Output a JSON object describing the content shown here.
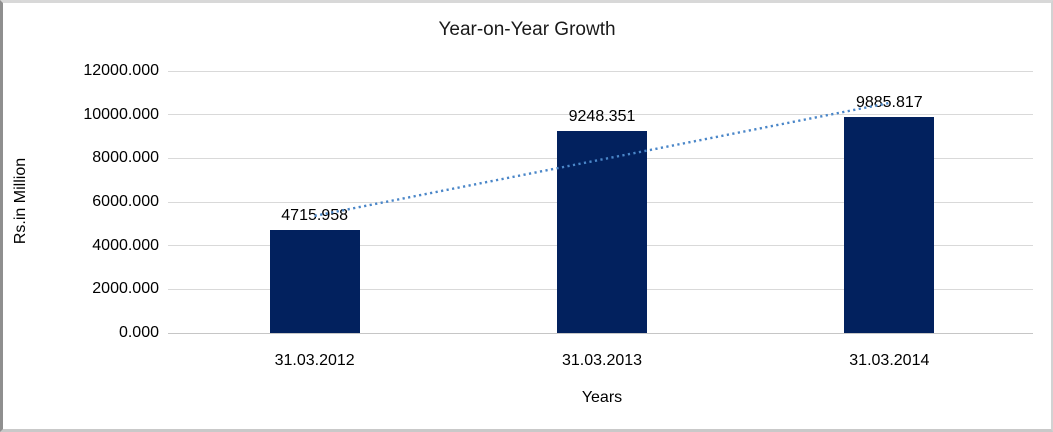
{
  "chart_data": {
    "type": "bar",
    "title": "Year-on-Year Growth",
    "xlabel": "Years",
    "ylabel": "Rs.in Million",
    "categories": [
      "31.03.2012",
      "31.03.2013",
      "31.03.2014"
    ],
    "values": [
      4715.958,
      9248.351,
      9885.817
    ],
    "data_labels": [
      "4715.958",
      "9248.351",
      "9885.817"
    ],
    "ylim": [
      0,
      12000
    ],
    "ytick_step": 2000,
    "ytick_labels": [
      "0.000",
      "2000.000",
      "4000.000",
      "6000.000",
      "8000.000",
      "10000.000",
      "12000.000"
    ],
    "grid": true,
    "legend": "none",
    "bar_color": "#02215E",
    "gridline_color": "#d9d9d9",
    "trendline": {
      "type": "linear",
      "style": "dotted",
      "color": "#4A86C8"
    }
  }
}
